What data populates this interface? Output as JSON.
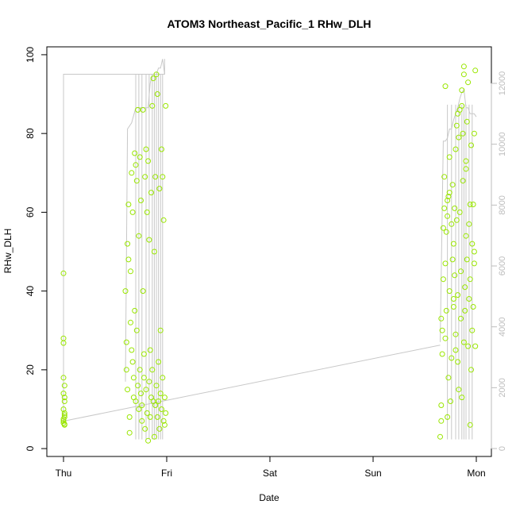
{
  "chart_data": {
    "type": "scatter",
    "title": "ATOM3 Northeast_Pacific_1 RHw_DLH",
    "xlabel": "Date",
    "ylabel": "RHw_DLH",
    "x_tick_labels": [
      "Thu",
      "Fri",
      "Sat",
      "Sun",
      "Mon"
    ],
    "y_ticks": [
      0,
      20,
      40,
      60,
      80,
      100
    ],
    "y2_ticks": [
      0,
      2000,
      4000,
      6000,
      8000,
      10000,
      12000
    ],
    "xlim": [
      -0.1,
      4.1
    ],
    "ylim": [
      -2,
      102
    ],
    "y2lim": [
      -260,
      13200
    ],
    "grid": false,
    "legend": "none",
    "colors": {
      "points": "#99e600",
      "altitude_line": "#c8c8c8",
      "axis": "#000000",
      "right_axis": "#bdbdbd"
    },
    "series": [
      {
        "type": "scatter",
        "x": [
          0.0,
          0.0,
          0.0,
          0.0,
          0.0,
          0.01,
          0.01,
          0.01,
          0.0,
          0.0,
          0.0,
          0.01,
          0.01,
          0.01,
          0.0,
          0.01,
          0.01,
          0.6,
          0.61,
          0.61,
          0.62,
          0.62,
          0.63,
          0.63,
          0.64,
          0.64,
          0.65,
          0.65,
          0.66,
          0.66,
          0.67,
          0.67,
          0.68,
          0.68,
          0.69,
          0.69,
          0.7,
          0.7,
          0.71,
          0.71,
          0.72,
          0.72,
          0.73,
          0.73,
          0.74,
          0.74,
          0.75,
          0.75,
          0.76,
          0.76,
          0.77,
          0.77,
          0.78,
          0.78,
          0.79,
          0.79,
          0.8,
          0.8,
          0.81,
          0.81,
          0.82,
          0.82,
          0.83,
          0.83,
          0.84,
          0.84,
          0.85,
          0.85,
          0.86,
          0.86,
          0.87,
          0.87,
          0.88,
          0.88,
          0.89,
          0.89,
          0.9,
          0.9,
          0.91,
          0.91,
          0.92,
          0.92,
          0.93,
          0.93,
          0.94,
          0.94,
          0.95,
          0.95,
          0.96,
          0.96,
          0.97,
          0.97,
          0.98,
          0.98,
          0.99,
          0.99,
          3.65,
          3.66,
          3.66,
          3.67,
          3.67,
          3.68,
          3.68,
          3.69,
          3.69,
          3.7,
          3.7,
          3.71,
          3.71,
          3.72,
          3.72,
          3.73,
          3.73,
          3.74,
          3.74,
          3.75,
          3.76,
          3.76,
          3.77,
          3.77,
          3.78,
          3.78,
          3.79,
          3.79,
          3.8,
          3.8,
          3.81,
          3.81,
          3.82,
          3.82,
          3.83,
          3.83,
          3.84,
          3.84,
          3.85,
          3.85,
          3.86,
          3.86,
          3.87,
          3.87,
          3.88,
          3.88,
          3.89,
          3.89,
          3.9,
          3.9,
          3.91,
          3.91,
          3.92,
          3.92,
          3.93,
          3.93,
          3.94,
          3.94,
          3.95,
          3.95,
          3.96,
          3.96,
          3.97,
          3.97,
          3.98,
          3.98,
          3.99,
          3.99,
          3.66,
          3.7,
          3.74,
          3.78,
          3.82,
          3.86,
          3.9,
          3.94,
          3.98,
          3.72,
          3.8,
          3.88
        ],
        "y": [
          44.5,
          28,
          26.8,
          18,
          14,
          12,
          9,
          8,
          7.5,
          7,
          6.5,
          6,
          6.2,
          8.5,
          10,
          16,
          13,
          40,
          27,
          20,
          15,
          52,
          62,
          48,
          8,
          4,
          32,
          45,
          70,
          25,
          60,
          22,
          13,
          18,
          35,
          75,
          72,
          12,
          30,
          68,
          86,
          16,
          10,
          54,
          74,
          20,
          14,
          63,
          7,
          11,
          40,
          86,
          24,
          18,
          69,
          5,
          76,
          15,
          60,
          9,
          73,
          2,
          17,
          53,
          8,
          25,
          65,
          13,
          87,
          20,
          94,
          12,
          3,
          50,
          69,
          11,
          16,
          95,
          8,
          90,
          22,
          12,
          66,
          5,
          30,
          14,
          76,
          10,
          18,
          69,
          7,
          58,
          13,
          6,
          87,
          9,
          3,
          7,
          11,
          24,
          30,
          43,
          56,
          61,
          69,
          47,
          28,
          35,
          55,
          63,
          8,
          18,
          64,
          40,
          74,
          12,
          57,
          23,
          48,
          67,
          36,
          52,
          44,
          61,
          76,
          29,
          58,
          82,
          39,
          22,
          79,
          15,
          60,
          86,
          45,
          33,
          91,
          13,
          80,
          68,
          27,
          95,
          41,
          35,
          54,
          71,
          48,
          83,
          26,
          93,
          38,
          57,
          62,
          43,
          20,
          77,
          30,
          52,
          62,
          36,
          47,
          50,
          26,
          96,
          33,
          92,
          65,
          38,
          85,
          87,
          73,
          6,
          80,
          59,
          25,
          97
        ],
        "name": ""
      },
      {
        "type": "line",
        "axis": "right",
        "x": [
          0.0,
          0.0,
          0.01,
          0.01,
          0.98,
          0.98,
          0.6,
          0.62,
          0.66,
          0.7,
          0.74,
          0.78,
          0.8,
          0.82,
          0.84,
          0.86,
          0.88,
          0.9,
          0.92,
          0.94,
          0.96,
          0.98,
          3.65,
          3.68,
          3.7,
          3.72,
          3.74,
          3.76,
          3.78,
          3.8,
          3.82,
          3.84,
          3.86,
          3.88,
          3.9,
          3.92,
          3.94,
          3.96,
          3.98,
          4.0,
          0.0,
          3.65
        ],
        "y": [
          800,
          12300,
          12300,
          12300,
          12300,
          12800,
          2200,
          10500,
          10700,
          11200,
          11200,
          11200,
          11200,
          11200,
          12000,
          12300,
          12300,
          12300,
          12500,
          12500,
          12800,
          12300,
          3500,
          10100,
          10100,
          10200,
          10500,
          10500,
          10800,
          11000,
          11200,
          11500,
          11700,
          11800,
          11200,
          11200,
          11000,
          11000,
          11000,
          10900,
          900,
          3400
        ],
        "name": ""
      }
    ]
  }
}
